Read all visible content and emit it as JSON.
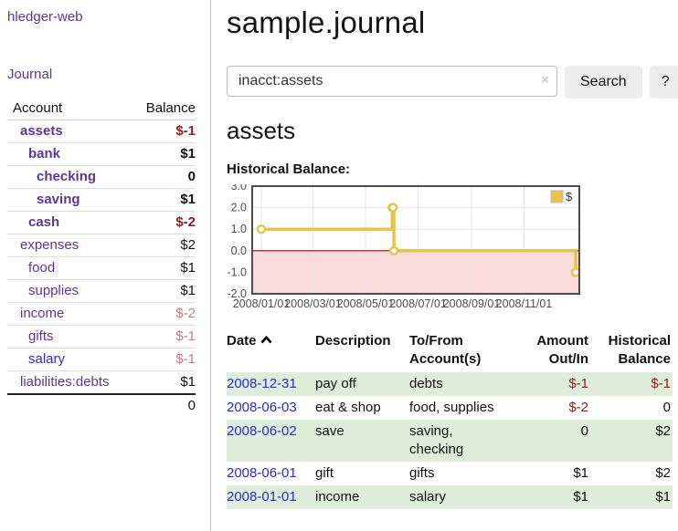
{
  "app": {
    "title": "hledger-web"
  },
  "colors": {
    "link_purple": "#5a3796",
    "link_blue": "#2a2ad4",
    "negative_strong": "#8f1d1d",
    "negative_faded": "#bd8083",
    "row_stripe_green": "#dfeeda",
    "chart_line_yellow": "#e8c24a",
    "chart_negative_region_pink": "#fbdada",
    "chart_zero_line_red": "#a40000",
    "button_gray": "#ededed"
  },
  "sidebar": {
    "journal_link": "Journal",
    "accounts": {
      "header_account": "Account",
      "header_balance": "Balance",
      "rows": [
        {
          "name": "assets",
          "depth": 0,
          "balance": "$-1",
          "bold": true,
          "balance_style": "neg-strong",
          "link_style": "purple"
        },
        {
          "name": "bank",
          "depth": 1,
          "balance": "$1",
          "bold": true,
          "balance_style": "normal",
          "link_style": "purple"
        },
        {
          "name": "checking",
          "depth": 2,
          "balance": "0",
          "bold": true,
          "balance_style": "normal",
          "link_style": "purple"
        },
        {
          "name": "saving",
          "depth": 2,
          "balance": "$1",
          "bold": true,
          "balance_style": "normal",
          "link_style": "purple"
        },
        {
          "name": "cash",
          "depth": 1,
          "balance": "$-2",
          "bold": true,
          "balance_style": "neg-strong",
          "link_style": "purple"
        },
        {
          "name": "expenses",
          "depth": 0,
          "balance": "$2",
          "bold": false,
          "balance_style": "normal",
          "link_style": "purple"
        },
        {
          "name": "food",
          "depth": 1,
          "balance": "$1",
          "bold": false,
          "balance_style": "normal",
          "link_style": "purple"
        },
        {
          "name": "supplies",
          "depth": 1,
          "balance": "$1",
          "bold": false,
          "balance_style": "normal",
          "link_style": "purple"
        },
        {
          "name": "income",
          "depth": 0,
          "balance": "$-2",
          "bold": false,
          "balance_style": "neg-faded",
          "link_style": "purple"
        },
        {
          "name": "gifts",
          "depth": 1,
          "balance": "$-1",
          "bold": false,
          "balance_style": "neg-faded",
          "link_style": "purple"
        },
        {
          "name": "salary",
          "depth": 1,
          "balance": "$-1",
          "bold": false,
          "balance_style": "neg-faded",
          "link_style": "blue"
        },
        {
          "name": "liabilities:debts",
          "depth": 0,
          "balance": "$1",
          "bold": false,
          "balance_style": "normal",
          "link_style": "purple"
        }
      ],
      "total": "0"
    }
  },
  "header": {
    "title": "sample.journal"
  },
  "search": {
    "value": "inacct:assets",
    "clear_icon": "×",
    "button_label": "Search",
    "help_label": "?"
  },
  "account_page": {
    "heading": "assets",
    "chart_label": "Historical Balance:"
  },
  "chart_data": {
    "type": "line",
    "title": "Historical Balance",
    "line_style": "steps-after",
    "series": [
      {
        "name": "$",
        "color": "#e8c24a",
        "points": [
          [
            "2008-01-01",
            1
          ],
          [
            "2008-06-01",
            2
          ],
          [
            "2008-06-02",
            2
          ],
          [
            "2008-06-03",
            0
          ],
          [
            "2008-12-31",
            -1
          ]
        ]
      }
    ],
    "x_ticks": [
      {
        "date": "2008-01-01",
        "label": "2008/01/01"
      },
      {
        "date": "2008-03-01",
        "label": "2008/03/01"
      },
      {
        "date": "2008-05-01",
        "label": "2008/05/01"
      },
      {
        "date": "2008-07-01",
        "label": "2008/07/01"
      },
      {
        "date": "2008-09-01",
        "label": "2008/09/01"
      },
      {
        "date": "2008-11-01",
        "label": "2008/11/01"
      }
    ],
    "y_ticks": [
      {
        "value": 3,
        "label": "3.0"
      },
      {
        "value": 2,
        "label": "2.0"
      },
      {
        "value": 1,
        "label": "1.0"
      },
      {
        "value": 0,
        "label": "0.0"
      },
      {
        "value": -1,
        "label": "-1.0"
      },
      {
        "value": -2,
        "label": "-2.0"
      }
    ],
    "ylim": [
      -2,
      3
    ],
    "grid": true,
    "legend_position": "top-right",
    "negative_region_shaded": true
  },
  "register": {
    "headers": {
      "date": "Date",
      "description": "Description",
      "accounts": "To/From Account(s)",
      "amount": "Amount Out/In",
      "balance": "Historical Balance"
    },
    "sort": {
      "column": "date",
      "direction": "ascending"
    },
    "rows": [
      {
        "date": "2008-12-31",
        "description": "pay off",
        "accounts": "debts",
        "amount": "$-1",
        "amount_negative": true,
        "balance": "$-1",
        "balance_negative": true
      },
      {
        "date": "2008-06-03",
        "description": "eat & shop",
        "accounts": "food, supplies",
        "amount": "$-2",
        "amount_negative": true,
        "balance": "0",
        "balance_negative": false
      },
      {
        "date": "2008-06-02",
        "description": "save",
        "accounts": "saving, checking",
        "amount": "0",
        "amount_negative": false,
        "balance": "$2",
        "balance_negative": false
      },
      {
        "date": "2008-06-01",
        "description": "gift",
        "accounts": "gifts",
        "amount": "$1",
        "amount_negative": false,
        "balance": "$2",
        "balance_negative": false
      },
      {
        "date": "2008-01-01",
        "description": "income",
        "accounts": "salary",
        "amount": "$1",
        "amount_negative": false,
        "balance": "$1",
        "balance_negative": false
      }
    ]
  }
}
